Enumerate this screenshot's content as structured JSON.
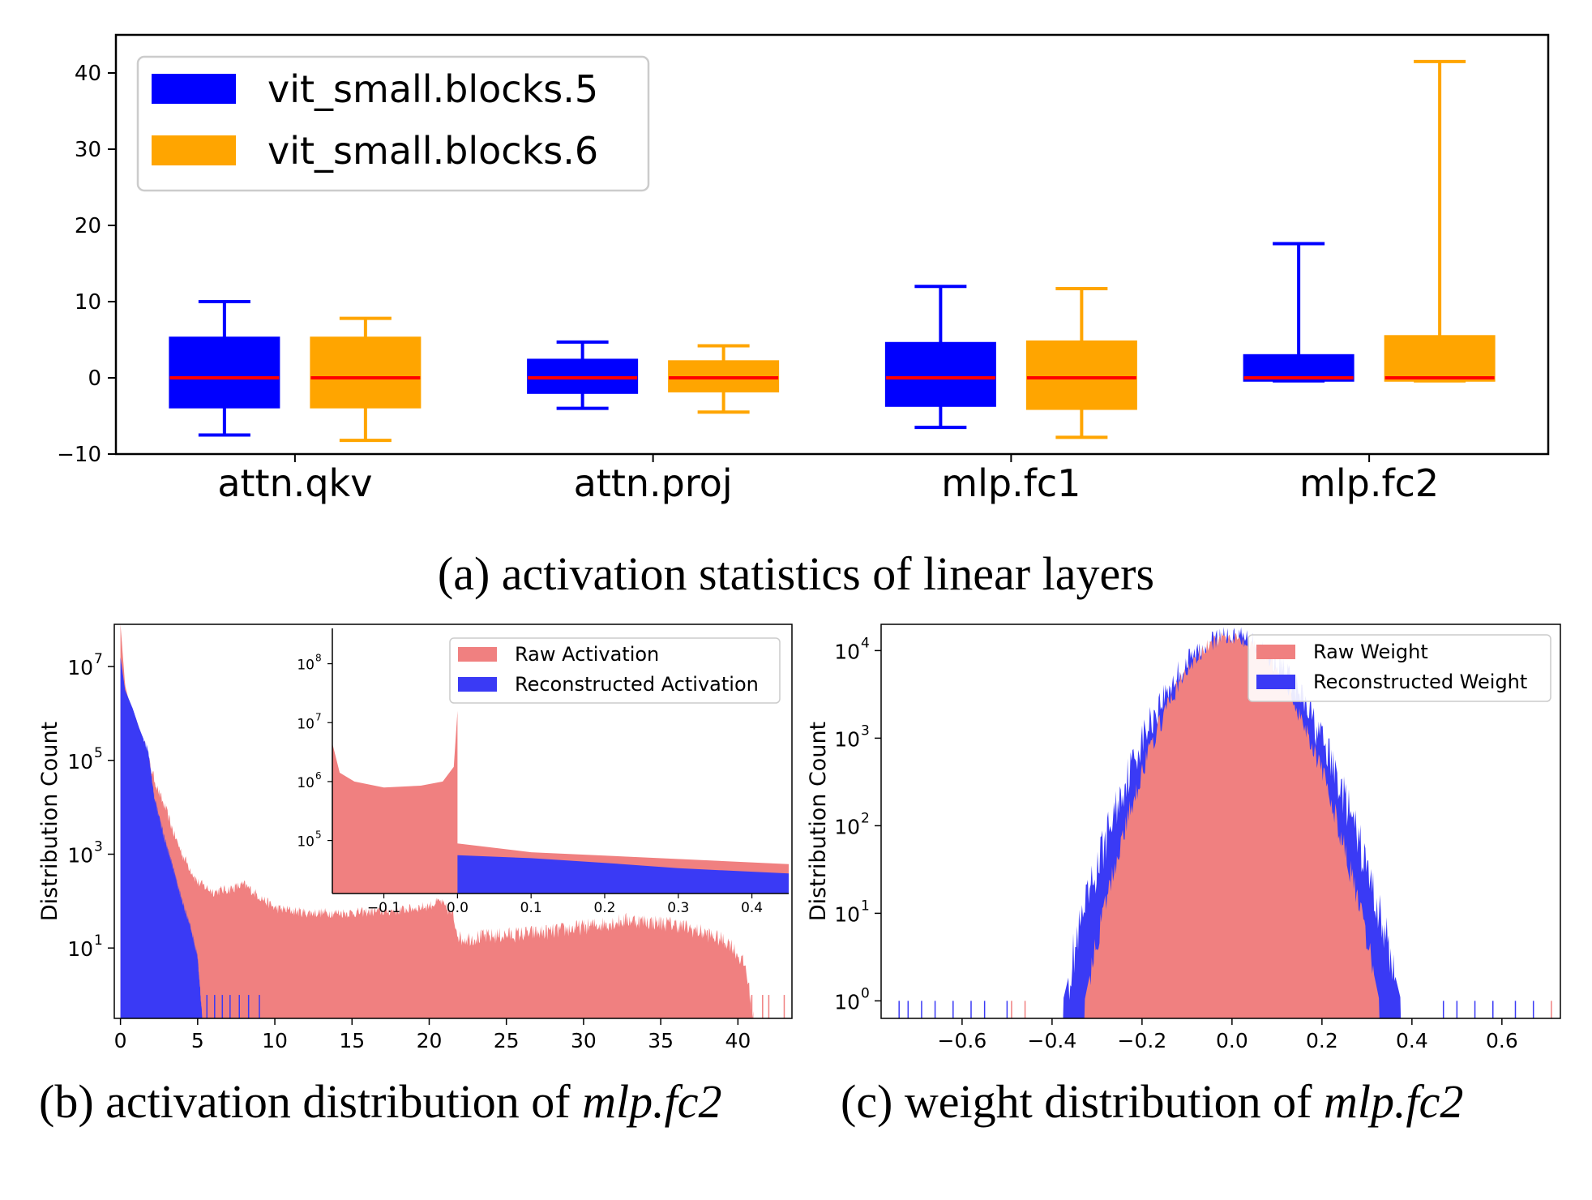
{
  "chart_data": [
    {
      "id": "a",
      "type": "boxplot",
      "caption": "(a) activation statistics of linear layers",
      "categories": [
        "attn.qkv",
        "attn.proj",
        "mlp.fc1",
        "mlp.fc2"
      ],
      "ylim": [
        -10,
        45
      ],
      "yticks": [
        {
          "v": -10,
          "label": "−10"
        },
        {
          "v": 0,
          "label": "0"
        },
        {
          "v": 10,
          "label": "10"
        },
        {
          "v": 20,
          "label": "20"
        },
        {
          "v": 30,
          "label": "30"
        },
        {
          "v": 40,
          "label": "40"
        }
      ],
      "legend_position": "top-left",
      "series": [
        {
          "name": "vit_small.blocks.5",
          "color": "#0000ff",
          "boxes": [
            {
              "whislo": -7.5,
              "q1": -3.9,
              "med": 0.0,
              "q3": 5.3,
              "whishi": 10.0
            },
            {
              "whislo": -4.0,
              "q1": -2.0,
              "med": 0.0,
              "q3": 2.4,
              "whishi": 4.7
            },
            {
              "whislo": -6.5,
              "q1": -3.7,
              "med": 0.0,
              "q3": 4.6,
              "whishi": 12.0
            },
            {
              "whislo": -0.4,
              "q1": -0.4,
              "med": 0.0,
              "q3": 3.0,
              "whishi": 17.6
            }
          ]
        },
        {
          "name": "vit_small.blocks.6",
          "color": "#ffa500",
          "boxes": [
            {
              "whislo": -8.2,
              "q1": -3.9,
              "med": 0.0,
              "q3": 5.3,
              "whishi": 7.8
            },
            {
              "whislo": -4.5,
              "q1": -1.8,
              "med": 0.0,
              "q3": 2.2,
              "whishi": 4.2
            },
            {
              "whislo": -7.8,
              "q1": -4.1,
              "med": 0.0,
              "q3": 4.8,
              "whishi": 11.7
            },
            {
              "whislo": -0.4,
              "q1": -0.4,
              "med": 0.0,
              "q3": 5.5,
              "whishi": 41.5
            }
          ]
        }
      ],
      "median_color": "#ff0000"
    },
    {
      "id": "b",
      "type": "histogram",
      "caption": {
        "prefix": "(b) activation distribution of ",
        "italic": "mlp.fc2"
      },
      "ylabel": "Distribution Count",
      "yscale": "log",
      "xlim": [
        -0.4,
        43.5
      ],
      "log_ylim": [
        -0.5,
        7.9
      ],
      "xticks": [
        {
          "v": 0,
          "label": "0"
        },
        {
          "v": 5,
          "label": "5"
        },
        {
          "v": 10,
          "label": "10"
        },
        {
          "v": 15,
          "label": "15"
        },
        {
          "v": 20,
          "label": "20"
        },
        {
          "v": 25,
          "label": "25"
        },
        {
          "v": 30,
          "label": "30"
        },
        {
          "v": 35,
          "label": "35"
        },
        {
          "v": 40,
          "label": "40"
        }
      ],
      "yticks": [
        {
          "v": 1,
          "base": "10",
          "exp": "1"
        },
        {
          "v": 3,
          "base": "10",
          "exp": "3"
        },
        {
          "v": 5,
          "base": "10",
          "exp": "5"
        },
        {
          "v": 7,
          "base": "10",
          "exp": "7"
        }
      ],
      "series": [
        {
          "name": "Raw Activation",
          "color": "#f08080",
          "profile": [
            [
              0.0,
              7.9
            ],
            [
              0.3,
              6.6
            ],
            [
              0.6,
              6.2
            ],
            [
              1.0,
              5.9
            ],
            [
              1.5,
              5.4
            ],
            [
              2.0,
              4.8
            ],
            [
              2.5,
              4.3
            ],
            [
              3.0,
              3.9
            ],
            [
              3.5,
              3.4
            ],
            [
              4.0,
              3.0
            ],
            [
              5.0,
              2.4
            ],
            [
              6.0,
              2.2
            ],
            [
              7.0,
              2.25
            ],
            [
              8.0,
              2.35
            ],
            [
              9.0,
              2.1
            ],
            [
              10.0,
              1.85
            ],
            [
              12.0,
              1.75
            ],
            [
              15.0,
              1.75
            ],
            [
              18.0,
              1.8
            ],
            [
              20.0,
              1.9
            ],
            [
              20.7,
              2.0
            ],
            [
              21.5,
              1.7
            ],
            [
              22.0,
              1.2
            ],
            [
              24.0,
              1.25
            ],
            [
              26.0,
              1.3
            ],
            [
              28.0,
              1.35
            ],
            [
              30.0,
              1.45
            ],
            [
              33.0,
              1.6
            ],
            [
              36.0,
              1.5
            ],
            [
              38.0,
              1.3
            ],
            [
              39.5,
              1.1
            ],
            [
              40.5,
              0.6
            ],
            [
              41.0,
              -0.5
            ]
          ]
        },
        {
          "name": "Reconstructed Activation",
          "color": "#3a3af5",
          "profile": [
            [
              0.0,
              7.2
            ],
            [
              0.3,
              6.5
            ],
            [
              0.8,
              6.1
            ],
            [
              1.2,
              5.7
            ],
            [
              1.8,
              5.2
            ],
            [
              2.0,
              4.7
            ],
            [
              2.2,
              4.2
            ],
            [
              2.8,
              3.4
            ],
            [
              3.5,
              2.6
            ],
            [
              4.0,
              2.0
            ],
            [
              4.5,
              1.5
            ],
            [
              5.0,
              0.8
            ],
            [
              5.3,
              -0.5
            ]
          ]
        }
      ],
      "inset": {
        "xlim": [
          -0.17,
          0.45
        ],
        "log_ylim": [
          4.1,
          8.6
        ],
        "xticks": [
          {
            "v": -0.1,
            "label": "−0.1"
          },
          {
            "v": 0.0,
            "label": "0.0"
          },
          {
            "v": 0.1,
            "label": "0.1"
          },
          {
            "v": 0.2,
            "label": "0.2"
          },
          {
            "v": 0.3,
            "label": "0.3"
          },
          {
            "v": 0.4,
            "label": "0.4"
          }
        ],
        "yticks": [
          {
            "v": 5,
            "base": "10",
            "exp": "5"
          },
          {
            "v": 6,
            "base": "10",
            "exp": "6"
          },
          {
            "v": 7,
            "base": "10",
            "exp": "7"
          },
          {
            "v": 8,
            "base": "10",
            "exp": "8"
          }
        ],
        "raw_profile": [
          [
            -0.17,
            6.65
          ],
          [
            -0.16,
            6.15
          ],
          [
            -0.14,
            6.0
          ],
          [
            -0.1,
            5.9
          ],
          [
            -0.05,
            5.93
          ],
          [
            -0.02,
            6.0
          ],
          [
            -0.005,
            6.25
          ],
          [
            0.0,
            7.2
          ],
          [
            0.0,
            4.95
          ],
          [
            0.1,
            4.8
          ],
          [
            0.45,
            4.6
          ]
        ],
        "rec_profile": [
          [
            0.0,
            4.75
          ],
          [
            0.1,
            4.7
          ],
          [
            0.2,
            4.62
          ],
          [
            0.3,
            4.53
          ],
          [
            0.45,
            4.44
          ]
        ]
      },
      "legend_position": "upper-right"
    },
    {
      "id": "c",
      "type": "histogram",
      "caption": {
        "prefix": "(c) weight distribution of ",
        "italic": "mlp.fc2"
      },
      "ylabel": "Distribution Count",
      "yscale": "log",
      "xlim": [
        -0.78,
        0.73
      ],
      "log_ylim": [
        -0.2,
        4.3
      ],
      "xticks": [
        {
          "v": -0.6,
          "label": "−0.6"
        },
        {
          "v": -0.4,
          "label": "−0.4"
        },
        {
          "v": -0.2,
          "label": "−0.2"
        },
        {
          "v": 0.0,
          "label": "0.0"
        },
        {
          "v": 0.2,
          "label": "0.2"
        },
        {
          "v": 0.4,
          "label": "0.4"
        },
        {
          "v": 0.6,
          "label": "0.6"
        }
      ],
      "yticks": [
        {
          "v": 0,
          "base": "10",
          "exp": "0"
        },
        {
          "v": 1,
          "base": "10",
          "exp": "1"
        },
        {
          "v": 2,
          "base": "10",
          "exp": "2"
        },
        {
          "v": 3,
          "base": "10",
          "exp": "3"
        },
        {
          "v": 4,
          "base": "10",
          "exp": "4"
        }
      ],
      "series": [
        {
          "name": "Raw Weight",
          "color": "#f08080",
          "peak_log": 4.15,
          "sigma": 0.075
        },
        {
          "name": "Reconstructed Weight",
          "color": "#3a3af5",
          "peak_log": 4.15,
          "sigma": 0.086
        }
      ],
      "legend_position": "upper-right"
    }
  ]
}
